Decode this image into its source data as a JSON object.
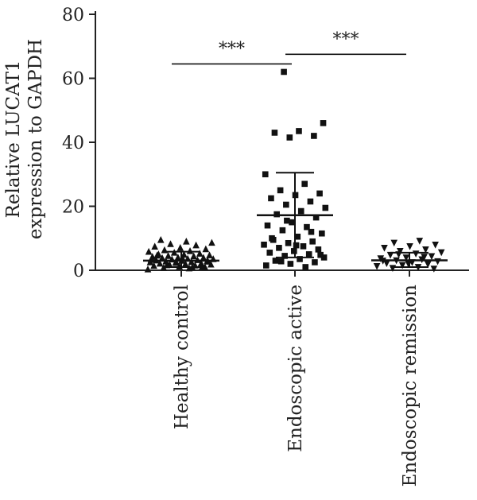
{
  "chart_data": {
    "type": "scatter",
    "title": "",
    "ylabel_lines": [
      "Relative LUCAT1",
      "expression to GAPDH"
    ],
    "xlabel": "",
    "ylim": [
      0,
      80
    ],
    "yticks": [
      0,
      20,
      40,
      60,
      80
    ],
    "ytick_labels": [
      "0",
      "20",
      "40",
      "60",
      "80"
    ],
    "categories": [
      "Healthy control",
      "Endoscopic active",
      "Endoscopic remission"
    ],
    "series": [
      {
        "category": "Healthy control",
        "marker": "triangle",
        "mean": 3.0,
        "sd_low": 1.0,
        "sd_high": 5.8,
        "values": [
          0.3,
          0.6,
          0.8,
          1.0,
          1.2,
          1.4,
          1.5,
          1.7,
          1.8,
          2.0,
          2.1,
          2.2,
          2.4,
          2.5,
          2.6,
          2.8,
          2.9,
          3.0,
          3.1,
          3.2,
          3.4,
          3.5,
          3.6,
          3.8,
          3.9,
          4.0,
          4.2,
          4.4,
          4.5,
          4.7,
          4.9,
          5.0,
          5.2,
          5.5,
          5.8,
          6.0,
          6.3,
          6.6,
          7.0,
          7.4,
          7.8,
          8.2,
          8.6,
          9.0,
          9.5,
          1.1,
          2.3,
          3.3,
          0.9,
          1.6,
          2.7,
          3.7,
          4.6
        ]
      },
      {
        "category": "Endoscopic active",
        "marker": "square",
        "mean": 17.2,
        "sd_low": 4.0,
        "sd_high": 30.5,
        "values": [
          62,
          46,
          43.5,
          43,
          42,
          41.5,
          30,
          27,
          25,
          24,
          23.5,
          22.5,
          21.5,
          20.5,
          19.5,
          18.5,
          17.5,
          16.5,
          15,
          14,
          13.5,
          12.5,
          11.5,
          10.5,
          9.5,
          9,
          8.5,
          8,
          7.5,
          7,
          6.5,
          6,
          5.5,
          5,
          4.5,
          4,
          3.5,
          3,
          2.5,
          2,
          1.5,
          1,
          2.8,
          4.8,
          7.8,
          10,
          12,
          15.5
        ]
      },
      {
        "category": "Endoscopic remission",
        "marker": "triangle-down",
        "mean": 3.1,
        "sd_low": 1.0,
        "sd_high": 5.5,
        "values": [
          9.2,
          8.6,
          8.0,
          7.5,
          7.0,
          6.5,
          6.0,
          5.6,
          5.2,
          4.8,
          4.4,
          4.0,
          3.7,
          3.4,
          3.1,
          2.8,
          2.5,
          2.2,
          1.9,
          1.6,
          1.3,
          1.0,
          0.7,
          0.5,
          2.0,
          3.0,
          4.2,
          5.0
        ]
      }
    ],
    "significance": [
      {
        "from": 0,
        "to": 1,
        "y": 64.5,
        "label": "***"
      },
      {
        "from": 1,
        "to": 2,
        "y": 67.5,
        "label": "***"
      }
    ],
    "grid": false,
    "legend": "none"
  }
}
